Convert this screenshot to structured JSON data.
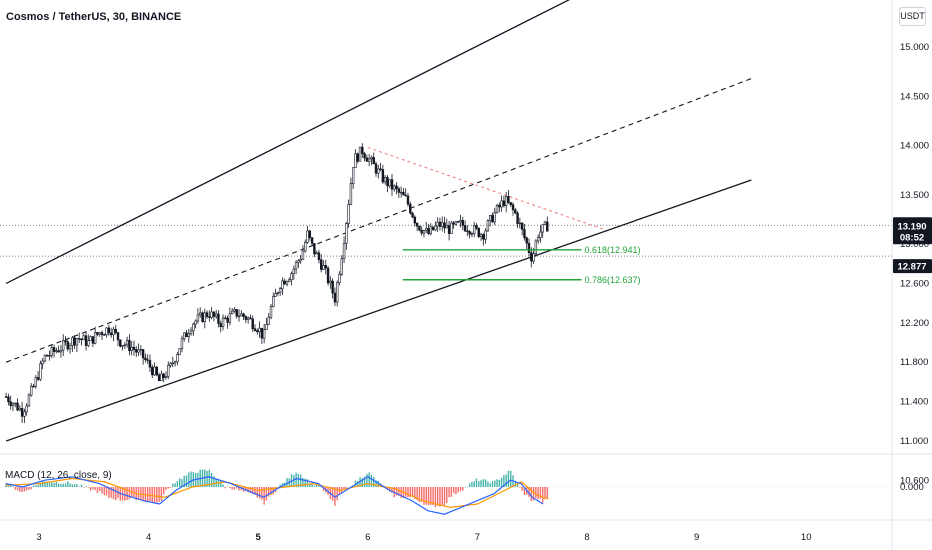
{
  "header": {
    "title": "Cosmos / TetherUS, 30, BINANCE",
    "unit": "USDT"
  },
  "chart_data": {
    "type": "candlestick",
    "symbol_title": "Cosmos / TetherUS, 30, BINANCE",
    "y_ticks": [
      "15.000",
      "14.500",
      "14.000",
      "13.500",
      "13.000",
      "12.600",
      "12.200",
      "11.800",
      "11.400",
      "11.000",
      "10.600"
    ],
    "x_ticks": [
      "3",
      "4",
      "5",
      "6",
      "7",
      "8",
      "9",
      "10"
    ],
    "x_ticks_bold": [
      "5"
    ],
    "current_price": "13.190",
    "countdown": "08:52",
    "level_price": "12.877",
    "fib_levels": [
      {
        "label": "0.618(12.941)",
        "value": 12.941
      },
      {
        "label": "0.786(12.637)",
        "value": 12.637
      }
    ],
    "channel": {
      "upper": [
        [
          2.7,
          12.6
        ],
        [
          9.3,
          16.3
        ]
      ],
      "middle": [
        [
          2.7,
          11.8
        ],
        [
          9.5,
          14.68
        ]
      ],
      "lower": [
        [
          2.7,
          11.0
        ],
        [
          9.5,
          13.65
        ]
      ]
    },
    "resistance_trendline": [
      [
        6.0,
        13.98
      ],
      [
        8.15,
        13.15
      ]
    ],
    "price_path": [
      [
        2.7,
        11.45
      ],
      [
        2.85,
        11.3
      ],
      [
        2.95,
        11.55
      ],
      [
        3.05,
        11.85
      ],
      [
        3.2,
        11.95
      ],
      [
        3.35,
        12.05
      ],
      [
        3.45,
        12.0
      ],
      [
        3.55,
        12.1
      ],
      [
        3.65,
        12.15
      ],
      [
        3.75,
        12.0
      ],
      [
        3.85,
        11.95
      ],
      [
        3.95,
        11.85
      ],
      [
        4.05,
        11.7
      ],
      [
        4.1,
        11.6
      ],
      [
        4.2,
        11.75
      ],
      [
        4.3,
        12.0
      ],
      [
        4.4,
        12.2
      ],
      [
        4.55,
        12.3
      ],
      [
        4.65,
        12.2
      ],
      [
        4.8,
        12.3
      ],
      [
        4.9,
        12.25
      ],
      [
        5.0,
        12.15
      ],
      [
        5.05,
        12.05
      ],
      [
        5.1,
        12.3
      ],
      [
        5.2,
        12.6
      ],
      [
        5.3,
        12.7
      ],
      [
        5.4,
        12.9
      ],
      [
        5.45,
        13.1
      ],
      [
        5.5,
        12.95
      ],
      [
        5.6,
        12.75
      ],
      [
        5.7,
        12.45
      ],
      [
        5.75,
        12.8
      ],
      [
        5.8,
        13.2
      ],
      [
        5.87,
        13.85
      ],
      [
        5.95,
        13.95
      ],
      [
        6.05,
        13.8
      ],
      [
        6.15,
        13.65
      ],
      [
        6.25,
        13.55
      ],
      [
        6.35,
        13.45
      ],
      [
        6.45,
        13.2
      ],
      [
        6.55,
        13.1
      ],
      [
        6.65,
        13.2
      ],
      [
        6.75,
        13.15
      ],
      [
        6.85,
        13.2
      ],
      [
        6.95,
        13.15
      ],
      [
        7.05,
        13.1
      ],
      [
        7.15,
        13.3
      ],
      [
        7.25,
        13.45
      ],
      [
        7.35,
        13.3
      ],
      [
        7.45,
        13.0
      ],
      [
        7.5,
        12.85
      ],
      [
        7.55,
        13.1
      ],
      [
        7.65,
        13.2
      ]
    ],
    "macd": {
      "label": "MACD (12, 26, close, 9)",
      "zero_label": "0.000",
      "colors": {
        "macd": "#2962ff",
        "signal": "#ff9800",
        "hist_pos": "#26a69a",
        "hist_neg": "#ef5350"
      },
      "macd_line": [
        [
          2.7,
          0.02
        ],
        [
          2.85,
          0.0
        ],
        [
          3.05,
          0.04
        ],
        [
          3.3,
          0.06
        ],
        [
          3.55,
          0.02
        ],
        [
          3.75,
          -0.04
        ],
        [
          3.95,
          -0.08
        ],
        [
          4.1,
          -0.1
        ],
        [
          4.25,
          -0.02
        ],
        [
          4.4,
          0.04
        ],
        [
          4.55,
          0.06
        ],
        [
          4.75,
          0.02
        ],
        [
          4.9,
          -0.02
        ],
        [
          5.05,
          -0.06
        ],
        [
          5.2,
          0.0
        ],
        [
          5.35,
          0.05
        ],
        [
          5.55,
          0.02
        ],
        [
          5.7,
          -0.06
        ],
        [
          5.85,
          0.0
        ],
        [
          6.0,
          0.06
        ],
        [
          6.2,
          -0.02
        ],
        [
          6.4,
          -0.08
        ],
        [
          6.55,
          -0.14
        ],
        [
          6.7,
          -0.16
        ],
        [
          6.85,
          -0.12
        ],
        [
          7.0,
          -0.08
        ],
        [
          7.15,
          -0.04
        ],
        [
          7.3,
          0.04
        ],
        [
          7.4,
          0.02
        ],
        [
          7.5,
          -0.06
        ],
        [
          7.6,
          -0.1
        ]
      ],
      "signal_line": [
        [
          2.7,
          0.01
        ],
        [
          3.0,
          0.02
        ],
        [
          3.3,
          0.05
        ],
        [
          3.6,
          0.03
        ],
        [
          3.9,
          -0.04
        ],
        [
          4.15,
          -0.06
        ],
        [
          4.4,
          0.0
        ],
        [
          4.7,
          0.03
        ],
        [
          5.0,
          -0.02
        ],
        [
          5.25,
          0.0
        ],
        [
          5.5,
          0.02
        ],
        [
          5.75,
          -0.02
        ],
        [
          6.0,
          0.02
        ],
        [
          6.25,
          -0.01
        ],
        [
          6.5,
          -0.08
        ],
        [
          6.75,
          -0.12
        ],
        [
          7.0,
          -0.1
        ],
        [
          7.25,
          -0.02
        ],
        [
          7.4,
          0.03
        ],
        [
          7.55,
          -0.05
        ],
        [
          7.65,
          -0.07
        ]
      ]
    }
  }
}
